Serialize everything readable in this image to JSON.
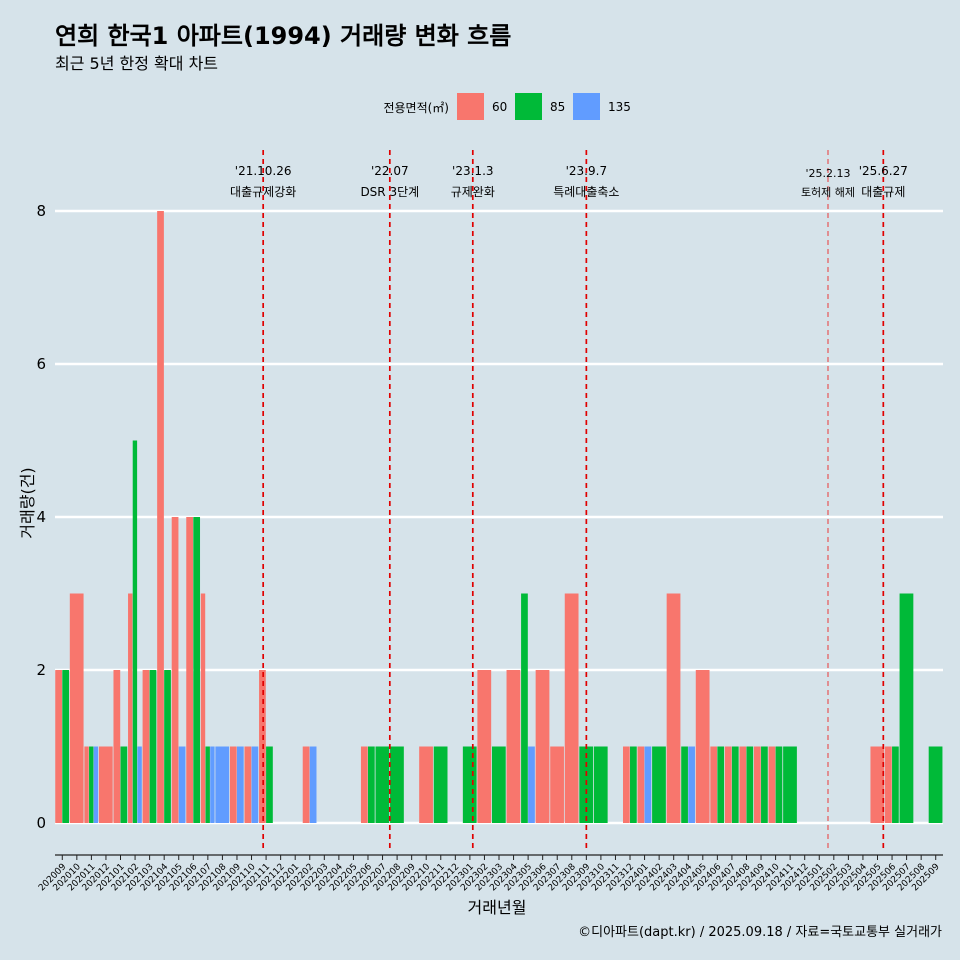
{
  "page": {
    "title": "연희 한국1 아파트(1994) 거래량 변화 흐름",
    "subtitle": "최근 5년 한정 확대 차트",
    "caption": "©디아파트(dapt.kr) / 2025.09.18 / 자료=국토교통부 실거래가"
  },
  "chart_data": {
    "type": "bar",
    "ylabel": "거래량(건)",
    "xlabel": "거래년월",
    "ylim": [
      0,
      8
    ],
    "yticks": [
      0,
      2,
      4,
      6,
      8
    ],
    "legend": {
      "title": "전용면적(㎡)",
      "position": "top-center",
      "items": [
        {
          "name": "60",
          "color": "#f8766d"
        },
        {
          "name": "85",
          "color": "#00ba38"
        },
        {
          "name": "135",
          "color": "#619cff"
        }
      ]
    },
    "categories": [
      "202009",
      "202010",
      "202011",
      "202012",
      "202101",
      "202102",
      "202103",
      "202104",
      "202105",
      "202106",
      "202107",
      "202108",
      "202109",
      "202110",
      "202111",
      "202112",
      "202201",
      "202202",
      "202203",
      "202204",
      "202205",
      "202206",
      "202207",
      "202208",
      "202209",
      "202210",
      "202211",
      "202212",
      "202301",
      "202302",
      "202303",
      "202304",
      "202305",
      "202306",
      "202307",
      "202308",
      "202309",
      "202310",
      "202311",
      "202312",
      "202401",
      "202402",
      "202403",
      "202404",
      "202405",
      "202406",
      "202407",
      "202408",
      "202409",
      "202410",
      "202411",
      "202412",
      "202501",
      "202502",
      "202503",
      "202504",
      "202505",
      "202506",
      "202507",
      "202508",
      "202509"
    ],
    "xtick_labels": [
      "202009",
      "202010",
      "202011",
      "202012",
      "202101",
      "202102",
      "202103",
      "202104",
      "202105",
      "202106",
      "202107",
      "202108",
      "202109",
      "202110",
      "202111",
      "202112",
      "202201",
      "202202",
      "202203",
      "202204",
      "202205",
      "202206",
      "202207",
      "202208",
      "202209",
      "202210",
      "202211",
      "202212",
      "202301",
      "202302",
      "202303",
      "202304",
      "202305",
      "202306",
      "202307",
      "202308",
      "202309",
      "202310",
      "202311",
      "202312",
      "202401",
      "202402",
      "202403",
      "202404",
      "202405",
      "202406",
      "202407",
      "202408",
      "202409",
      "202410",
      "202411",
      "202412",
      "202501",
      "202502",
      "202503",
      "202504",
      "202505",
      "202506",
      "202507",
      "202508",
      "202509"
    ],
    "series": [
      {
        "name": "60",
        "color": "#f8766d",
        "values": [
          2,
          3,
          1,
          1,
          2,
          3,
          2,
          8,
          4,
          4,
          3,
          0,
          1,
          1,
          2,
          0,
          0,
          1,
          0,
          0,
          0,
          1,
          0,
          0,
          0,
          1,
          0,
          0,
          0,
          2,
          0,
          2,
          0,
          2,
          1,
          3,
          0,
          0,
          0,
          1,
          1,
          0,
          3,
          0,
          2,
          1,
          1,
          1,
          1,
          1,
          0,
          0,
          0,
          0,
          0,
          0,
          1,
          1,
          0,
          0,
          0
        ]
      },
      {
        "name": "85",
        "color": "#00ba38",
        "values": [
          2,
          0,
          1,
          0,
          1,
          5,
          2,
          2,
          0,
          4,
          1,
          0,
          0,
          0,
          1,
          0,
          0,
          0,
          0,
          0,
          0,
          1,
          1,
          1,
          0,
          0,
          1,
          0,
          1,
          0,
          1,
          0,
          3,
          0,
          0,
          0,
          1,
          1,
          0,
          1,
          0,
          1,
          0,
          1,
          0,
          1,
          1,
          1,
          1,
          1,
          1,
          0,
          0,
          0,
          0,
          0,
          0,
          1,
          3,
          0,
          1
        ]
      },
      {
        "name": "135",
        "color": "#619cff",
        "values": [
          0,
          0,
          1,
          0,
          0,
          1,
          0,
          0,
          1,
          0,
          1,
          1,
          1,
          1,
          0,
          0,
          0,
          1,
          0,
          0,
          0,
          0,
          0,
          0,
          0,
          0,
          0,
          0,
          0,
          0,
          0,
          0,
          1,
          0,
          0,
          0,
          0,
          0,
          0,
          0,
          1,
          0,
          0,
          1,
          0,
          0,
          0,
          0,
          0,
          0,
          0,
          0,
          0,
          0,
          0,
          0,
          0,
          0,
          0,
          0,
          0
        ]
      }
    ],
    "events": [
      {
        "date": "'21.10.26",
        "label": "대출규제강화",
        "month_index": 13.8
      },
      {
        "date": "'22.07",
        "label": "DSR 3단계",
        "month_index": 22.5
      },
      {
        "date": "'23.1.3",
        "label": "규제완화",
        "month_index": 28.2
      },
      {
        "date": "'23.9.7",
        "label": "특례대출축소",
        "month_index": 36.0
      },
      {
        "date": "'25.2.13",
        "label": "토허제 해제",
        "month_index": 52.6
      },
      {
        "date": "'25.6.27",
        "label": "대출규제",
        "month_index": 56.4
      }
    ]
  }
}
